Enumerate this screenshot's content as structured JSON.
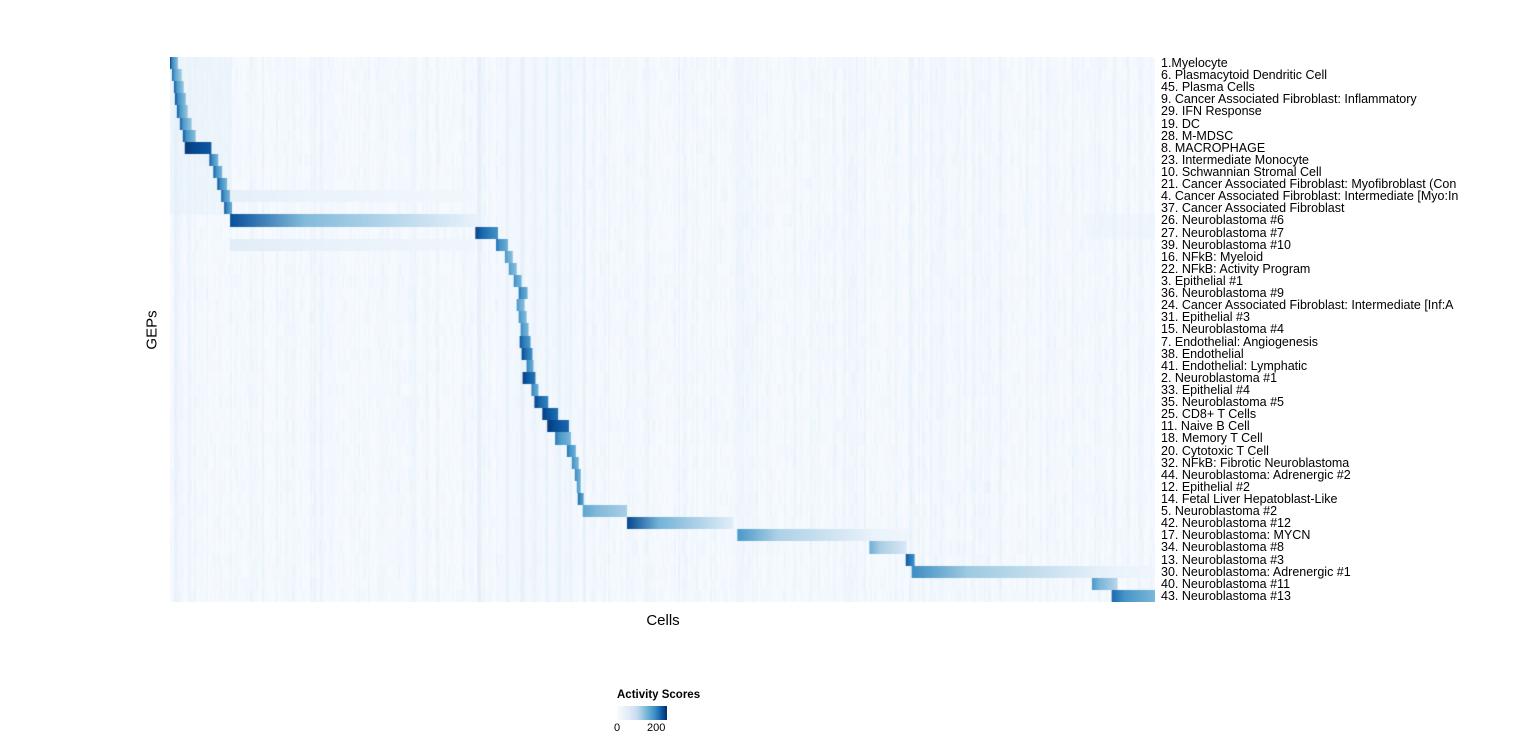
{
  "chart_data": {
    "type": "heatmap",
    "title": "",
    "xlabel": "Cells",
    "ylabel": "GEPs",
    "legend": {
      "title": "Activity Scores",
      "ticks": [
        0,
        200
      ],
      "scale_max": 255
    },
    "colormap": {
      "name": "Blues",
      "stops": [
        [
          0,
          "#f7fbff"
        ],
        [
          0.25,
          "#deebf7"
        ],
        [
          0.4,
          "#c6dbef"
        ],
        [
          0.5,
          "#9ecae1"
        ],
        [
          0.63,
          "#6baed6"
        ],
        [
          0.75,
          "#4292c6"
        ],
        [
          0.84,
          "#2171b5"
        ],
        [
          0.92,
          "#08519c"
        ],
        [
          1,
          "#08306b"
        ]
      ]
    },
    "noise": {
      "seed": 7,
      "column_amount": 26,
      "cell_amount": 20
    },
    "vertical_streaks": [
      {
        "x": 0.004,
        "w": 0.004,
        "v": 55
      },
      {
        "x": 0.018,
        "w": 0.003,
        "v": 45
      },
      {
        "x": 0.312,
        "w": 0.004,
        "v": 70
      },
      {
        "x": 0.341,
        "w": 0.003,
        "v": 55
      },
      {
        "x": 0.356,
        "w": 0.004,
        "v": 55
      },
      {
        "x": 0.369,
        "w": 0.003,
        "v": 50
      },
      {
        "x": 0.381,
        "w": 0.003,
        "v": 50
      },
      {
        "x": 0.393,
        "w": 0.004,
        "v": 50
      },
      {
        "x": 0.405,
        "w": 0.003,
        "v": 45
      },
      {
        "x": 0.419,
        "w": 0.003,
        "v": 60
      },
      {
        "x": 0.577,
        "w": 0.003,
        "v": 45
      },
      {
        "x": 0.75,
        "w": 0.003,
        "v": 50
      },
      {
        "x": 0.957,
        "w": 0.004,
        "v": 45
      }
    ],
    "region_tints": [
      {
        "x0": 0.0,
        "x1": 0.062,
        "r0": 0,
        "r1": 13,
        "v": 45
      },
      {
        "x0": 0.337,
        "x1": 0.413,
        "r0": 0,
        "r1": 45,
        "v": 20
      },
      {
        "x0": 0.93,
        "x1": 1.0,
        "r0": 13,
        "r1": 15,
        "v": 35
      }
    ],
    "rows": [
      {
        "label": "1.Myelocyte",
        "blocks": [
          [
            0.0,
            0.008,
            240,
            140
          ]
        ]
      },
      {
        "label": "6. Plasmacytoid Dendritic Cell",
        "blocks": [
          [
            0.002,
            0.012,
            220,
            120
          ]
        ]
      },
      {
        "label": "45. Plasma Cells",
        "blocks": [
          [
            0.004,
            0.014,
            230,
            130
          ]
        ]
      },
      {
        "label": "9. Cancer Associated Fibroblast: Inflammatory",
        "blocks": [
          [
            0.005,
            0.016,
            235,
            140
          ]
        ]
      },
      {
        "label": "29. IFN Response",
        "blocks": [
          [
            0.007,
            0.018,
            230,
            130
          ]
        ]
      },
      {
        "label": "19. DC",
        "blocks": [
          [
            0.01,
            0.022,
            225,
            130
          ]
        ]
      },
      {
        "label": "28. M-MDSC",
        "blocks": [
          [
            0.013,
            0.026,
            230,
            140
          ]
        ]
      },
      {
        "label": "8. MACROPHAGE",
        "blocks": [
          [
            0.015,
            0.042,
            250,
            230
          ]
        ]
      },
      {
        "label": "23. Intermediate Monocyte",
        "blocks": [
          [
            0.04,
            0.049,
            235,
            150
          ]
        ]
      },
      {
        "label": "10. Schwannian Stromal Cell",
        "blocks": [
          [
            0.044,
            0.053,
            230,
            150
          ]
        ]
      },
      {
        "label": "21. Cancer Associated Fibroblast: Myofibroblast (Con",
        "blocks": [
          [
            0.048,
            0.058,
            235,
            150
          ]
        ]
      },
      {
        "label": "4. Cancer Associated Fibroblast: Intermediate [Myo:In",
        "blocks": [
          [
            0.052,
            0.061,
            230,
            150
          ],
          [
            0.061,
            0.31,
            45,
            15
          ]
        ]
      },
      {
        "label": "37. Cancer Associated Fibroblast",
        "blocks": [
          [
            0.055,
            0.063,
            235,
            160
          ]
        ]
      },
      {
        "label": "26. Neuroblastoma #6",
        "blocks": [
          [
            0.061,
            0.312,
            235,
            35
          ]
        ]
      },
      {
        "label": "27. Neuroblastoma #7",
        "blocks": [
          [
            0.31,
            0.333,
            245,
            190
          ]
        ]
      },
      {
        "label": "39. Neuroblastoma #10",
        "blocks": [
          [
            0.061,
            0.31,
            55,
            18
          ],
          [
            0.331,
            0.343,
            215,
            160
          ]
        ]
      },
      {
        "label": "16. NFkB: Myeloid",
        "blocks": [
          [
            0.34,
            0.348,
            190,
            140
          ]
        ]
      },
      {
        "label": "22. NFkB: Activity Program",
        "blocks": [
          [
            0.344,
            0.352,
            185,
            140
          ]
        ]
      },
      {
        "label": "3. Epithelial #1",
        "blocks": [
          [
            0.349,
            0.357,
            200,
            150
          ]
        ]
      },
      {
        "label": "36. Neuroblastoma #9",
        "blocks": [
          [
            0.354,
            0.363,
            215,
            160
          ]
        ]
      },
      {
        "label": "24. Cancer Associated Fibroblast: Intermediate [Inf:A",
        "blocks": [
          [
            0.352,
            0.36,
            190,
            140
          ]
        ]
      },
      {
        "label": "31. Epithelial #3",
        "blocks": [
          [
            0.354,
            0.362,
            195,
            145
          ]
        ]
      },
      {
        "label": "15. Neuroblastoma #4",
        "blocks": [
          [
            0.356,
            0.364,
            200,
            150
          ]
        ]
      },
      {
        "label": "7. Endothelial: Angiogenesis",
        "blocks": [
          [
            0.355,
            0.366,
            235,
            180
          ]
        ]
      },
      {
        "label": "38. Endothelial",
        "blocks": [
          [
            0.357,
            0.368,
            245,
            190
          ]
        ]
      },
      {
        "label": "41. Endothelial: Lymphatic",
        "blocks": [
          [
            0.362,
            0.369,
            210,
            160
          ]
        ]
      },
      {
        "label": "2. Neuroblastoma #1",
        "blocks": [
          [
            0.358,
            0.371,
            250,
            210
          ]
        ]
      },
      {
        "label": "33. Epithelial #4",
        "blocks": [
          [
            0.367,
            0.374,
            210,
            160
          ]
        ]
      },
      {
        "label": "35. Neuroblastoma #5",
        "blocks": [
          [
            0.37,
            0.384,
            245,
            200
          ]
        ]
      },
      {
        "label": "25. CD8+ T Cells",
        "blocks": [
          [
            0.378,
            0.394,
            250,
            215
          ]
        ]
      },
      {
        "label": "11. Naive B Cell",
        "blocks": [
          [
            0.383,
            0.405,
            252,
            220
          ]
        ]
      },
      {
        "label": "18. Memory T Cell",
        "blocks": [
          [
            0.391,
            0.407,
            210,
            150
          ]
        ]
      },
      {
        "label": "20. Cytotoxic T Cell",
        "blocks": [
          [
            0.403,
            0.412,
            215,
            160
          ]
        ]
      },
      {
        "label": "32. NFkB: Fibrotic Neuroblastoma",
        "blocks": [
          [
            0.408,
            0.415,
            200,
            150
          ]
        ]
      },
      {
        "label": "44. Neuroblastoma: Adrenergic #2",
        "blocks": [
          [
            0.411,
            0.417,
            205,
            155
          ]
        ]
      },
      {
        "label": "12. Epithelial #2",
        "blocks": [
          [
            0.413,
            0.417,
            190,
            150
          ]
        ]
      },
      {
        "label": "14. Fetal Liver Hepatoblast-Like",
        "blocks": [
          [
            0.414,
            0.42,
            225,
            170
          ]
        ]
      },
      {
        "label": "5. Neuroblastoma #2",
        "blocks": [
          [
            0.419,
            0.464,
            170,
            120
          ]
        ]
      },
      {
        "label": "42. Neuroblastoma #12",
        "blocks": [
          [
            0.464,
            0.572,
            240,
            50
          ]
        ]
      },
      {
        "label": "17. Neuroblastoma: MYCN",
        "blocks": [
          [
            0.576,
            0.713,
            185,
            35
          ],
          [
            0.713,
            0.75,
            35,
            20
          ]
        ]
      },
      {
        "label": "34. Neuroblastoma #8",
        "blocks": [
          [
            0.71,
            0.748,
            160,
            70
          ]
        ]
      },
      {
        "label": "13. Neuroblastoma #3",
        "blocks": [
          [
            0.747,
            0.756,
            235,
            190
          ]
        ]
      },
      {
        "label": "30. Neuroblastoma: Adrenergic #1",
        "blocks": [
          [
            0.753,
            0.942,
            195,
            45
          ],
          [
            0.942,
            1.0,
            45,
            20
          ]
        ]
      },
      {
        "label": "40. Neuroblastoma #11",
        "blocks": [
          [
            0.936,
            0.962,
            185,
            110
          ]
        ]
      },
      {
        "label": "43. Neuroblastoma #13",
        "blocks": [
          [
            0.956,
            1.0,
            220,
            150
          ]
        ]
      }
    ]
  }
}
